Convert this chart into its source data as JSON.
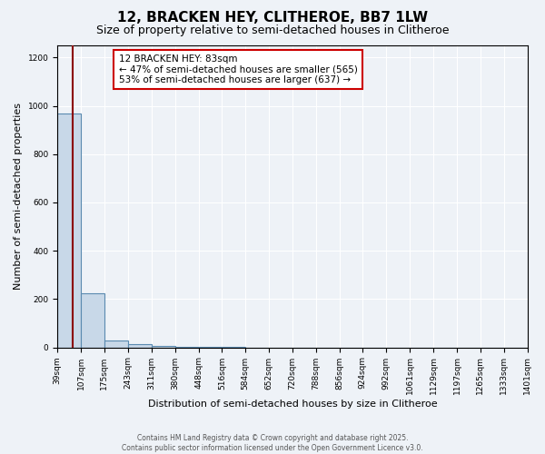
{
  "title": "12, BRACKEN HEY, CLITHEROE, BB7 1LW",
  "subtitle": "Size of property relative to semi-detached houses in Clitheroe",
  "xlabel": "Distribution of semi-detached houses by size in Clitheroe",
  "ylabel": "Number of semi-detached properties",
  "bar_values": [
    970,
    225,
    30,
    15,
    5,
    2,
    1,
    1,
    0,
    0,
    0,
    0,
    0,
    0,
    0,
    0,
    0,
    0,
    0,
    0
  ],
  "bin_edges": [
    39,
    107,
    175,
    243,
    311,
    380,
    448,
    516,
    584,
    652,
    720,
    788,
    856,
    924,
    992,
    1061,
    1129,
    1197,
    1265,
    1333,
    1401
  ],
  "bin_labels": [
    "39sqm",
    "107sqm",
    "175sqm",
    "243sqm",
    "311sqm",
    "380sqm",
    "448sqm",
    "516sqm",
    "584sqm",
    "652sqm",
    "720sqm",
    "788sqm",
    "856sqm",
    "924sqm",
    "992sqm",
    "1061sqm",
    "1129sqm",
    "1197sqm",
    "1265sqm",
    "1333sqm",
    "1401sqm"
  ],
  "bar_color": "#c8d8e8",
  "bar_edge_color": "#5a8ab0",
  "bar_linewidth": 0.8,
  "property_size": 83,
  "property_line_color": "#8b0000",
  "annotation_text": "12 BRACKEN HEY: 83sqm\n← 47% of semi-detached houses are smaller (565)\n53% of semi-detached houses are larger (637) →",
  "annotation_box_color": "#ffffff",
  "annotation_box_edge_color": "#cc0000",
  "ylim": [
    0,
    1250
  ],
  "yticks": [
    0,
    200,
    400,
    600,
    800,
    1000,
    1200
  ],
  "background_color": "#eef2f7",
  "plot_bg_color": "#eef2f7",
  "footer_text": "Contains HM Land Registry data © Crown copyright and database right 2025.\nContains public sector information licensed under the Open Government Licence v3.0.",
  "title_fontsize": 11,
  "subtitle_fontsize": 9,
  "label_fontsize": 8,
  "tick_fontsize": 6.5,
  "annotation_fontsize": 7.5,
  "footer_fontsize": 5.5
}
